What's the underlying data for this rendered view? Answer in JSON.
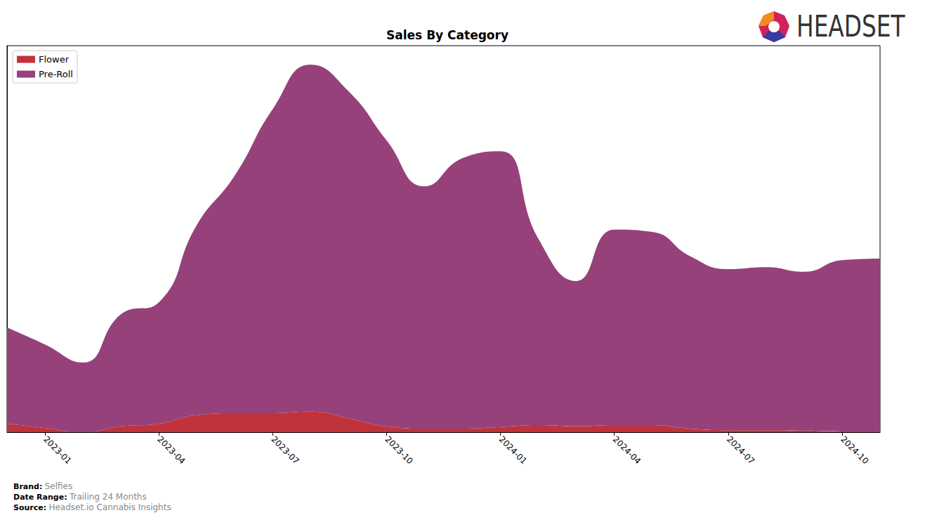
{
  "chart_data": {
    "type": "area",
    "title": "Sales By Category",
    "categories": [
      null,
      "2023-01",
      null,
      null,
      "2023-04",
      null,
      null,
      "2023-07",
      null,
      null,
      "2023-10",
      null,
      null,
      "2024-01",
      null,
      null,
      "2024-04",
      null,
      null,
      "2024-07",
      null,
      null,
      "2024-10",
      null
    ],
    "series": [
      {
        "name": "Flower",
        "color": "#c1333a",
        "values": [
          2.2,
          1.1,
          0.0,
          1.5,
          2.2,
          4.4,
          4.9,
          4.9,
          5.3,
          3.6,
          1.5,
          0.9,
          0.9,
          1.3,
          1.8,
          1.5,
          1.8,
          1.8,
          0.9,
          0.5,
          0.5,
          0.4,
          0.2,
          0.2
        ]
      },
      {
        "name": "Pre-Roll",
        "color": "#96417a",
        "values": [
          24.9,
          21.6,
          18.0,
          29.0,
          31.4,
          49.2,
          61.5,
          78.7,
          89.8,
          84.6,
          74.0,
          62.7,
          70.0,
          71.4,
          48.2,
          37.6,
          50.6,
          50.0,
          44.6,
          41.7,
          42.2,
          41.1,
          44.3,
          44.7
        ]
      }
    ],
    "ylim": [
      0,
      100
    ],
    "stacked": true,
    "legend": "upper left",
    "tick_labels": "x",
    "grid": false
  },
  "footer": [
    {
      "label": "Brand:",
      "value": "Selfies"
    },
    {
      "label": "Date Range:",
      "value": "Trailing 24 Months"
    },
    {
      "label": "Source:",
      "value": "Headset.io Cannabis Insights"
    }
  ],
  "logo": "HEADSET"
}
